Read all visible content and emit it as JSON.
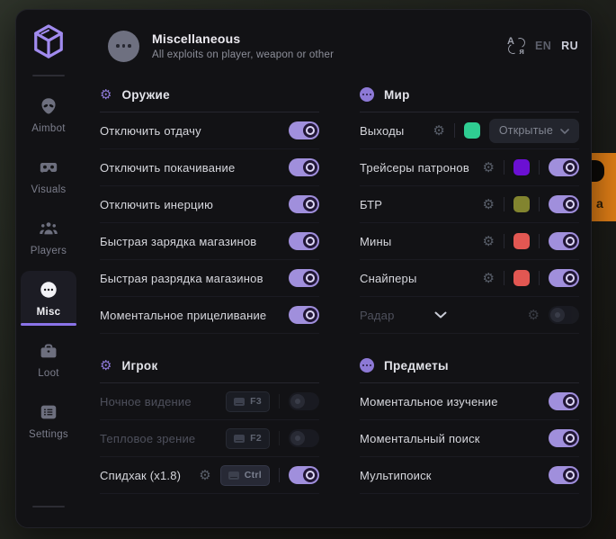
{
  "colors": {
    "accent": "#8a73e8",
    "toggle_on": "#a08fdc",
    "green_swatch": "#2fcd92",
    "purple_swatch": "#6b10d3",
    "olive_swatch": "#82842f",
    "red_swatch": "#e25752",
    "orange_fragment": "#de7d16"
  },
  "header": {
    "title": "Miscellaneous",
    "subtitle": "All exploits on player, weapon or other",
    "languages": [
      {
        "code": "EN",
        "active": false
      },
      {
        "code": "RU",
        "active": true
      }
    ]
  },
  "sidebar": {
    "items": [
      {
        "id": "aimbot",
        "label": "Aimbot",
        "icon": "alien",
        "active": false
      },
      {
        "id": "visuals",
        "label": "Visuals",
        "icon": "goggles",
        "active": false
      },
      {
        "id": "players",
        "label": "Players",
        "icon": "players",
        "active": false
      },
      {
        "id": "misc",
        "label": "Misc",
        "icon": "dots",
        "active": true
      },
      {
        "id": "loot",
        "label": "Loot",
        "icon": "briefcase",
        "active": false
      },
      {
        "id": "settings",
        "label": "Settings",
        "icon": "list",
        "active": false
      }
    ]
  },
  "columns": [
    {
      "sections": [
        {
          "id": "weapon",
          "icon": "gear",
          "title": "Оружие",
          "rows": [
            {
              "label": "Отключить отдачу",
              "controls": [
                {
                  "type": "toggle",
                  "state": "on"
                }
              ]
            },
            {
              "label": "Отключить покачивание",
              "controls": [
                {
                  "type": "toggle",
                  "state": "on"
                }
              ]
            },
            {
              "label": "Отключить инерцию",
              "controls": [
                {
                  "type": "toggle",
                  "state": "on"
                }
              ]
            },
            {
              "label": "Быстрая зарядка магазинов",
              "controls": [
                {
                  "type": "toggle",
                  "state": "on"
                }
              ]
            },
            {
              "label": "Быстрая разрядка магазинов",
              "controls": [
                {
                  "type": "toggle",
                  "state": "on"
                }
              ]
            },
            {
              "label": "Моментальное прицеливание",
              "controls": [
                {
                  "type": "toggle",
                  "state": "on"
                }
              ]
            }
          ]
        },
        {
          "id": "player",
          "icon": "gear",
          "title": "Игрок",
          "rows": [
            {
              "label": "Ночное видение",
              "disabled": true,
              "controls": [
                {
                  "type": "key",
                  "label": "F3"
                },
                {
                  "type": "sep"
                },
                {
                  "type": "toggle",
                  "state": "off"
                }
              ]
            },
            {
              "label": "Тепловое зрение",
              "disabled": true,
              "controls": [
                {
                  "type": "key",
                  "label": "F2"
                },
                {
                  "type": "sep"
                },
                {
                  "type": "toggle",
                  "state": "off"
                }
              ]
            },
            {
              "label": "Спидхак (x1.8)",
              "controls": [
                {
                  "type": "gear"
                },
                {
                  "type": "key",
                  "label": "Ctrl",
                  "light": true
                },
                {
                  "type": "sep"
                },
                {
                  "type": "toggle",
                  "state": "on"
                }
              ]
            }
          ]
        }
      ]
    },
    {
      "sections": [
        {
          "id": "world",
          "icon": "dots",
          "title": "Мир",
          "rows": [
            {
              "label": "Выходы",
              "controls": [
                {
                  "type": "gear"
                },
                {
                  "type": "sep"
                },
                {
                  "type": "swatch",
                  "color": "#2fcd92"
                },
                {
                  "type": "dropdown",
                  "label": "Открытые"
                }
              ]
            },
            {
              "label": "Трейсеры патронов",
              "controls": [
                {
                  "type": "gear"
                },
                {
                  "type": "sep"
                },
                {
                  "type": "swatch",
                  "color": "#6b10d3"
                },
                {
                  "type": "sep"
                },
                {
                  "type": "toggle",
                  "state": "on"
                }
              ]
            },
            {
              "label": "БТР",
              "controls": [
                {
                  "type": "gear"
                },
                {
                  "type": "sep"
                },
                {
                  "type": "swatch",
                  "color": "#82842f"
                },
                {
                  "type": "sep"
                },
                {
                  "type": "toggle",
                  "state": "on"
                }
              ]
            },
            {
              "label": "Мины",
              "controls": [
                {
                  "type": "gear"
                },
                {
                  "type": "sep"
                },
                {
                  "type": "swatch",
                  "color": "#e25752"
                },
                {
                  "type": "sep"
                },
                {
                  "type": "toggle",
                  "state": "on"
                }
              ]
            },
            {
              "label": "Снайперы",
              "controls": [
                {
                  "type": "gear"
                },
                {
                  "type": "sep"
                },
                {
                  "type": "swatch",
                  "color": "#e25752"
                },
                {
                  "type": "sep"
                },
                {
                  "type": "toggle",
                  "state": "on"
                }
              ]
            },
            {
              "label": "Радар",
              "disabled": true,
              "chevron": true,
              "controls": [
                {
                  "type": "gear"
                },
                {
                  "type": "toggle",
                  "state": "off"
                }
              ]
            }
          ]
        },
        {
          "id": "items",
          "icon": "dots",
          "title": "Предметы",
          "rows": [
            {
              "label": "Моментальное изучение",
              "controls": [
                {
                  "type": "toggle",
                  "state": "on"
                }
              ]
            },
            {
              "label": "Моментальный поиск",
              "controls": [
                {
                  "type": "toggle",
                  "state": "on"
                }
              ]
            },
            {
              "label": "Мультипоиск",
              "controls": [
                {
                  "type": "toggle",
                  "state": "on"
                }
              ]
            }
          ]
        }
      ]
    }
  ],
  "background": {
    "orange_glyph": "a"
  }
}
